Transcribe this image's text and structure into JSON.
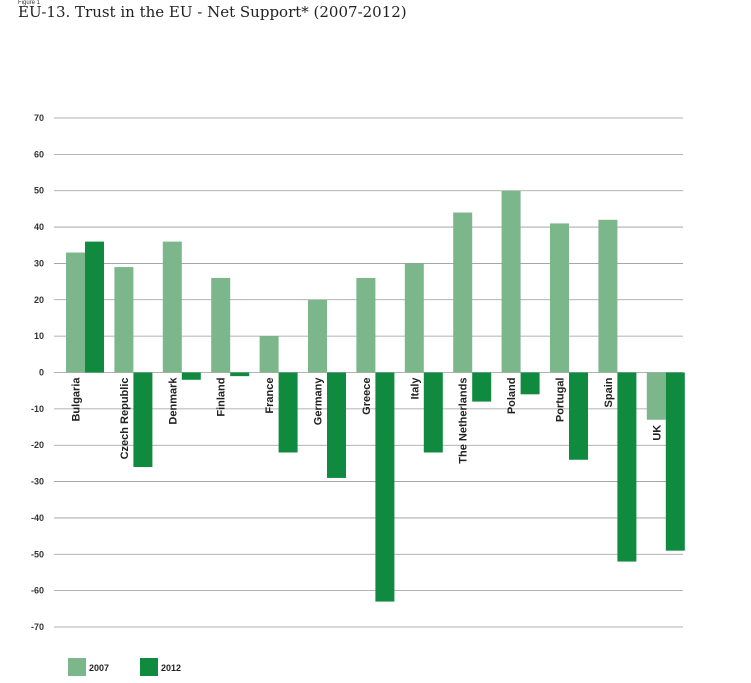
{
  "figure_tag": "Figure 1",
  "title": "EU-13. Trust in the EU - Net Support* (2007-2012)",
  "colors": {
    "s2007": "#7bb78b",
    "s2012": "#0f8a3e",
    "grid": "#999999"
  },
  "chart_data": {
    "type": "bar",
    "title": "EU-13. Trust in the EU - Net Support* (2007-2012)",
    "categories": [
      "Bulgaria",
      "Czech Republic",
      "Denmark",
      "Finland",
      "France",
      "Germany",
      "Greece",
      "Italy",
      "The Netherlands",
      "Poland",
      "Portugal",
      "Spain",
      "UK"
    ],
    "series": [
      {
        "name": "2007",
        "values": [
          33,
          29,
          36,
          26,
          10,
          20,
          26,
          30,
          44,
          50,
          41,
          42,
          -13
        ]
      },
      {
        "name": "2012",
        "values": [
          36,
          -26,
          -2,
          -1,
          -22,
          -29,
          -63,
          -22,
          -8,
          -6,
          -24,
          -52,
          -49
        ]
      }
    ],
    "xlabel": "",
    "ylabel": "",
    "ylim": [
      -70,
      70
    ],
    "yticks": [
      70,
      60,
      50,
      40,
      30,
      20,
      10,
      0,
      -10,
      -20,
      -30,
      -40,
      -50,
      -60,
      -70
    ],
    "grid": true,
    "legend": "bottom-left"
  }
}
